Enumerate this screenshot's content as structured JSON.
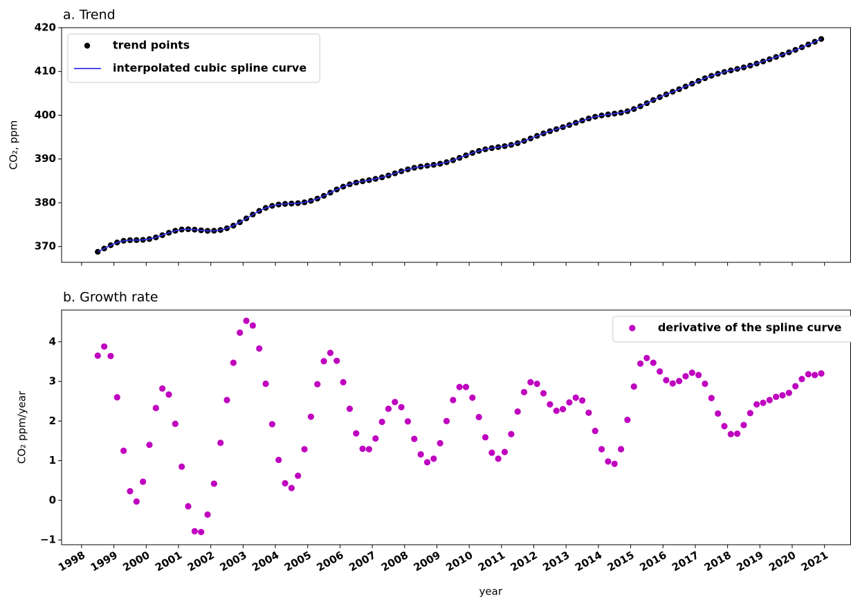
{
  "chart_data": [
    {
      "type": "line",
      "title": "a. Trend",
      "ylabel": "CO₂, ppm",
      "xlim": [
        1997.38,
        2021.81
      ],
      "ylim": [
        366.4,
        420
      ],
      "yticks": [
        370,
        380,
        390,
        400,
        410,
        420
      ],
      "legend": "upper left",
      "x": [
        1998.5,
        1998.7,
        1998.9,
        1999.1,
        1999.3,
        1999.5,
        1999.7,
        1999.9,
        2000.1,
        2000.3,
        2000.5,
        2000.7,
        2000.9,
        2001.1,
        2001.3,
        2001.5,
        2001.7,
        2001.9,
        2002.1,
        2002.3,
        2002.5,
        2002.7,
        2002.9,
        2003.1,
        2003.3,
        2003.5,
        2003.7,
        2003.9,
        2004.1,
        2004.3,
        2004.5,
        2004.7,
        2004.9,
        2005.1,
        2005.3,
        2005.5,
        2005.7,
        2005.9,
        2006.1,
        2006.3,
        2006.5,
        2006.7,
        2006.9,
        2007.1,
        2007.3,
        2007.5,
        2007.7,
        2007.9,
        2008.1,
        2008.3,
        2008.5,
        2008.7,
        2008.9,
        2009.1,
        2009.3,
        2009.5,
        2009.7,
        2009.9,
        2010.1,
        2010.3,
        2010.5,
        2010.7,
        2010.9,
        2011.1,
        2011.3,
        2011.5,
        2011.7,
        2011.9,
        2012.1,
        2012.3,
        2012.5,
        2012.7,
        2012.9,
        2013.1,
        2013.3,
        2013.5,
        2013.7,
        2013.9,
        2014.1,
        2014.3,
        2014.5,
        2014.7,
        2014.9,
        2015.1,
        2015.3,
        2015.5,
        2015.7,
        2015.9,
        2016.1,
        2016.3,
        2016.5,
        2016.7,
        2016.9,
        2017.1,
        2017.3,
        2017.5,
        2017.7,
        2017.9,
        2018.1,
        2018.3,
        2018.5,
        2018.7,
        2018.9,
        2019.1,
        2019.3,
        2019.5,
        2019.7,
        2019.9,
        2020.1,
        2020.3,
        2020.5,
        2020.7,
        2020.9
      ],
      "series": [
        {
          "name": "trend points",
          "color": "#000000",
          "mode": "markers",
          "values": [
            368.8,
            369.55,
            370.3,
            370.93,
            371.31,
            371.46,
            371.48,
            371.53,
            371.71,
            372.09,
            372.6,
            373.15,
            373.61,
            373.89,
            373.96,
            373.86,
            373.71,
            373.59,
            373.6,
            373.78,
            374.18,
            374.78,
            375.55,
            376.43,
            377.32,
            378.14,
            378.82,
            379.3,
            379.6,
            379.74,
            379.82,
            379.91,
            380.1,
            380.44,
            380.95,
            381.59,
            382.31,
            383.04,
            383.69,
            384.22,
            384.62,
            384.92,
            385.17,
            385.46,
            385.81,
            386.24,
            386.72,
            387.2,
            387.64,
            387.99,
            388.26,
            388.47,
            388.67,
            388.92,
            389.27,
            389.72,
            390.26,
            390.83,
            391.38,
            391.85,
            392.22,
            392.49,
            392.72,
            392.94,
            393.23,
            393.62,
            394.12,
            394.69,
            395.28,
            395.85,
            396.36,
            396.83,
            397.28,
            397.76,
            398.27,
            398.78,
            399.25,
            399.65,
            399.95,
            400.18,
            400.37,
            400.59,
            400.92,
            401.41,
            402.05,
            402.75,
            403.46,
            404.13,
            404.76,
            405.36,
            405.95,
            406.57,
            407.2,
            407.84,
            408.45,
            409.0,
            409.48,
            409.89,
            410.24,
            410.58,
            410.93,
            411.34,
            411.81,
            412.29,
            412.79,
            413.31,
            413.83,
            414.37,
            414.93,
            415.52,
            416.15,
            416.78,
            417.42
          ]
        },
        {
          "name": "interpolated cubic spline curve",
          "color": "#3333ee",
          "mode": "line",
          "values": [
            368.8,
            369.55,
            370.3,
            370.93,
            371.31,
            371.46,
            371.48,
            371.53,
            371.71,
            372.09,
            372.6,
            373.15,
            373.61,
            373.89,
            373.96,
            373.86,
            373.71,
            373.59,
            373.6,
            373.78,
            374.18,
            374.78,
            375.55,
            376.43,
            377.32,
            378.14,
            378.82,
            379.3,
            379.6,
            379.74,
            379.82,
            379.91,
            380.1,
            380.44,
            380.95,
            381.59,
            382.31,
            383.04,
            383.69,
            384.22,
            384.62,
            384.92,
            385.17,
            385.46,
            385.81,
            386.24,
            386.72,
            387.2,
            387.64,
            387.99,
            388.26,
            388.47,
            388.67,
            388.92,
            389.27,
            389.72,
            390.26,
            390.83,
            391.38,
            391.85,
            392.22,
            392.49,
            392.72,
            392.94,
            393.23,
            393.62,
            394.12,
            394.69,
            395.28,
            395.85,
            396.36,
            396.83,
            397.28,
            397.76,
            398.27,
            398.78,
            399.25,
            399.65,
            399.95,
            400.18,
            400.37,
            400.59,
            400.92,
            401.41,
            402.05,
            402.75,
            403.46,
            404.13,
            404.76,
            405.36,
            405.95,
            406.57,
            407.2,
            407.84,
            408.45,
            409.0,
            409.48,
            409.89,
            410.24,
            410.58,
            410.93,
            411.34,
            411.81,
            412.29,
            412.79,
            413.31,
            413.83,
            414.37,
            414.93,
            415.52,
            416.15,
            416.78,
            417.42
          ]
        }
      ]
    },
    {
      "type": "scatter",
      "title": "b. Growth rate",
      "ylabel": "CO₂ ppm/year",
      "xlabel": "year",
      "xlim": [
        1997.38,
        2021.81
      ],
      "ylim": [
        -1.12,
        4.8
      ],
      "xticks": [
        1998,
        1999,
        2000,
        2001,
        2002,
        2003,
        2004,
        2005,
        2006,
        2007,
        2008,
        2009,
        2010,
        2011,
        2012,
        2013,
        2014,
        2015,
        2016,
        2017,
        2018,
        2019,
        2020,
        2021
      ],
      "yticks": [
        {
          "value": -1,
          "label": "−1"
        },
        0,
        1,
        2,
        3,
        4
      ],
      "legend": "upper right",
      "x": [
        1998.5,
        1998.7,
        1998.9,
        1999.1,
        1999.3,
        1999.5,
        1999.7,
        1999.9,
        2000.1,
        2000.3,
        2000.5,
        2000.7,
        2000.9,
        2001.1,
        2001.3,
        2001.5,
        2001.7,
        2001.9,
        2002.1,
        2002.3,
        2002.5,
        2002.7,
        2002.9,
        2003.1,
        2003.3,
        2003.5,
        2003.7,
        2003.9,
        2004.1,
        2004.3,
        2004.5,
        2004.7,
        2004.9,
        2005.1,
        2005.3,
        2005.5,
        2005.7,
        2005.9,
        2006.1,
        2006.3,
        2006.5,
        2006.7,
        2006.9,
        2007.1,
        2007.3,
        2007.5,
        2007.7,
        2007.9,
        2008.1,
        2008.3,
        2008.5,
        2008.7,
        2008.9,
        2009.1,
        2009.3,
        2009.5,
        2009.7,
        2009.9,
        2010.1,
        2010.3,
        2010.5,
        2010.7,
        2010.9,
        2011.1,
        2011.3,
        2011.5,
        2011.7,
        2011.9,
        2012.1,
        2012.3,
        2012.5,
        2012.7,
        2012.9,
        2013.1,
        2013.3,
        2013.5,
        2013.7,
        2013.9,
        2014.1,
        2014.3,
        2014.5,
        2014.7,
        2014.9,
        2015.1,
        2015.3,
        2015.5,
        2015.7,
        2015.9,
        2016.1,
        2016.3,
        2016.5,
        2016.7,
        2016.9,
        2017.1,
        2017.3,
        2017.5,
        2017.7,
        2017.9,
        2018.1,
        2018.3,
        2018.5,
        2018.7,
        2018.9,
        2019.1,
        2019.3,
        2019.5,
        2019.7,
        2019.9,
        2020.1,
        2020.3,
        2020.5,
        2020.7,
        2020.9
      ],
      "series": [
        {
          "name": "derivative of the spline curve",
          "color": "#bf00bf",
          "mode": "markers",
          "values": [
            3.65,
            3.88,
            3.64,
            2.6,
            1.25,
            0.23,
            -0.03,
            0.47,
            1.4,
            2.33,
            2.82,
            2.67,
            1.93,
            0.85,
            -0.15,
            -0.78,
            -0.8,
            -0.36,
            0.42,
            1.45,
            2.53,
            3.47,
            4.23,
            4.53,
            4.41,
            3.83,
            2.94,
            1.92,
            1.02,
            0.43,
            0.31,
            0.62,
            1.29,
            2.11,
            2.93,
            3.51,
            3.72,
            3.52,
            2.98,
            2.31,
            1.69,
            1.3,
            1.29,
            1.56,
            1.98,
            2.31,
            2.48,
            2.35,
            1.99,
            1.55,
            1.16,
            0.96,
            1.05,
            1.44,
            2.0,
            2.53,
            2.86,
            2.86,
            2.59,
            2.1,
            1.59,
            1.2,
            1.05,
            1.22,
            1.67,
            2.24,
            2.73,
            2.98,
            2.94,
            2.7,
            2.42,
            2.26,
            2.3,
            2.47,
            2.59,
            2.52,
            2.21,
            1.75,
            1.29,
            0.98,
            0.92,
            1.29,
            2.03,
            2.87,
            3.45,
            3.59,
            3.47,
            3.25,
            3.03,
            2.95,
            3.01,
            3.13,
            3.22,
            3.16,
            2.94,
            2.58,
            2.19,
            1.87,
            1.67,
            1.68,
            1.9,
            2.2,
            2.42,
            2.46,
            2.53,
            2.61,
            2.65,
            2.71,
            2.88,
            3.06,
            3.18,
            3.16,
            3.2
          ]
        }
      ]
    }
  ]
}
